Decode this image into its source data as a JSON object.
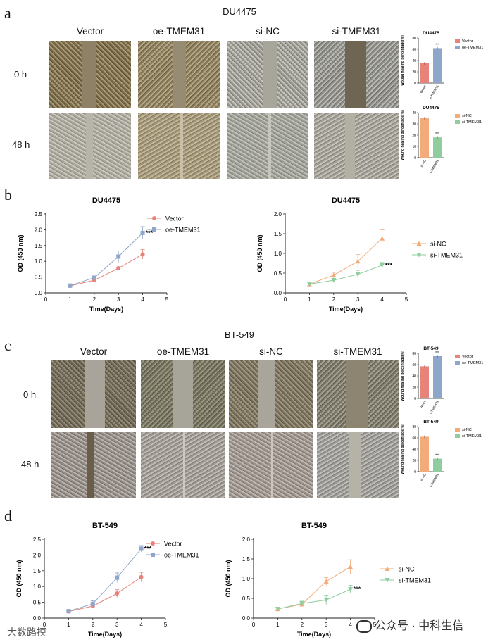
{
  "panels": {
    "a": {
      "letter": "a",
      "title": "DU4475",
      "columns": [
        "Vector",
        "oe-TMEM31",
        "si-NC",
        "si-TMEM31"
      ],
      "rows": [
        "0 h",
        "48 h"
      ]
    },
    "b": {
      "letter": "b"
    },
    "c": {
      "letter": "c",
      "title": "BT-549",
      "columns": [
        "Vector",
        "oe-TMEM31",
        "si-NC",
        "si-TMEM31"
      ],
      "rows": [
        "0 h",
        "48 h"
      ]
    },
    "d": {
      "letter": "d"
    }
  },
  "watermark": {
    "left": "大数路摸",
    "right": "公众号 · 中科生信"
  },
  "colors": {
    "vector": "#e8837a",
    "oe": "#8ea6c9",
    "sinc": "#f3ab7a",
    "sitmem": "#8fcc9e",
    "micro_dark": "#6b5a3a",
    "micro_light": "#b9b6ad"
  },
  "chart_data": [
    {
      "id": "a-bar-oe",
      "type": "bar",
      "title": "DU4475",
      "ylabel": "Wound healing percentage(%)",
      "ylim": [
        0,
        80
      ],
      "yticks": [
        0,
        20,
        40,
        60,
        80
      ],
      "categories": [
        "Vector",
        "oe-TMEM31"
      ],
      "values": [
        35,
        62
      ],
      "legend": [
        "Vector",
        "oe-TMEM31"
      ],
      "annotation": "***"
    },
    {
      "id": "a-bar-si",
      "type": "bar",
      "title": "DU4475",
      "ylabel": "Wound healing percentage(%)",
      "ylim": [
        0,
        40
      ],
      "yticks": [
        0,
        10,
        20,
        30,
        40
      ],
      "categories": [
        "si-NC",
        "si-TMEM31"
      ],
      "values": [
        35,
        18
      ],
      "legend": [
        "si-NC",
        "si-TMEM31"
      ],
      "annotation": "***"
    },
    {
      "id": "b-line-oe",
      "type": "line",
      "title": "DU4475",
      "xlabel": "Time(Days)",
      "ylabel": "OD (450 nm)",
      "xlim": [
        0,
        5
      ],
      "ylim": [
        0,
        2.5
      ],
      "xticks": [
        0,
        1,
        2,
        3,
        4,
        5
      ],
      "yticks": [
        "0.0",
        "0.5",
        "1.0",
        "1.5",
        "2.0",
        "2.5"
      ],
      "x": [
        1,
        2,
        3,
        4
      ],
      "legend_position": "top-right",
      "series": [
        {
          "name": "Vector",
          "values": [
            0.22,
            0.4,
            0.78,
            1.22
          ],
          "err": [
            0.03,
            0.04,
            0.04,
            0.15
          ]
        },
        {
          "name": "oe-TMEM31",
          "values": [
            0.23,
            0.48,
            1.15,
            1.9
          ],
          "err": [
            0.03,
            0.05,
            0.18,
            0.2
          ]
        }
      ],
      "annotation": "***"
    },
    {
      "id": "b-line-si",
      "type": "line",
      "title": "DU4475",
      "xlabel": "Time(Days)",
      "ylabel": "OD (450 nm)",
      "xlim": [
        0,
        5
      ],
      "ylim": [
        0,
        2.0
      ],
      "xticks": [
        0,
        1,
        2,
        3,
        4,
        5
      ],
      "yticks": [
        "0.0",
        "0.5",
        "1.0",
        "1.5",
        "2.0"
      ],
      "x": [
        1,
        2,
        3,
        4
      ],
      "legend_position": "right",
      "series": [
        {
          "name": "si-NC",
          "values": [
            0.22,
            0.45,
            0.8,
            1.38
          ],
          "err": [
            0.04,
            0.07,
            0.17,
            0.22
          ]
        },
        {
          "name": "si-TMEM31",
          "values": [
            0.22,
            0.32,
            0.47,
            0.7
          ],
          "err": [
            0.04,
            0.05,
            0.1,
            0.07
          ]
        }
      ],
      "annotation": "***"
    },
    {
      "id": "c-bar-oe",
      "type": "bar",
      "title": "BT-549",
      "ylabel": "Wound healing percentage(%)",
      "ylim": [
        0,
        80
      ],
      "yticks": [
        0,
        20,
        40,
        60,
        80
      ],
      "categories": [
        "Vector",
        "oe-TMEM31"
      ],
      "values": [
        57,
        75
      ],
      "legend": [
        "Vector",
        "oe-TMEM31"
      ],
      "annotation": "***"
    },
    {
      "id": "c-bar-si",
      "type": "bar",
      "title": "BT-549",
      "ylabel": "Wound healing percentage(%)",
      "ylim": [
        0,
        80
      ],
      "yticks": [
        0,
        20,
        40,
        60,
        80
      ],
      "categories": [
        "si-NC",
        "si-TMEM31"
      ],
      "values": [
        62,
        23
      ],
      "legend": [
        "si-NC",
        "si-TMEM31"
      ],
      "annotation": "***"
    },
    {
      "id": "d-line-oe",
      "type": "line",
      "title": "BT-549",
      "xlabel": "Time(Days)",
      "ylabel": "OD (450 nm)",
      "xlim": [
        0,
        5
      ],
      "ylim": [
        0,
        2.5
      ],
      "xticks": [
        0,
        1,
        2,
        3,
        4,
        5
      ],
      "yticks": [
        "0.0",
        "0.5",
        "1.0",
        "1.5",
        "2.0",
        "2.5"
      ],
      "x": [
        1,
        2,
        3,
        4
      ],
      "legend_position": "top-right",
      "series": [
        {
          "name": "Vector",
          "values": [
            0.21,
            0.38,
            0.78,
            1.3
          ],
          "err": [
            0.03,
            0.05,
            0.12,
            0.15
          ]
        },
        {
          "name": "oe-TMEM31",
          "values": [
            0.22,
            0.45,
            1.28,
            2.2
          ],
          "err": [
            0.03,
            0.1,
            0.15,
            0.1
          ]
        }
      ],
      "annotation": "***"
    },
    {
      "id": "d-line-si",
      "type": "line",
      "title": "BT-549",
      "xlabel": "Time(Days)",
      "ylabel": "OD (450 nm)",
      "xlim": [
        0,
        5
      ],
      "ylim": [
        0,
        2.0
      ],
      "xticks": [
        0,
        1,
        2,
        3,
        4,
        5
      ],
      "yticks": [
        "0.0",
        "0.5",
        "1.0",
        "1.5",
        "2.0"
      ],
      "x": [
        1,
        2,
        3,
        4
      ],
      "legend_position": "right",
      "series": [
        {
          "name": "si-NC",
          "values": [
            0.23,
            0.35,
            0.93,
            1.3
          ],
          "err": [
            0.04,
            0.06,
            0.1,
            0.18
          ]
        },
        {
          "name": "si-TMEM31",
          "values": [
            0.23,
            0.37,
            0.46,
            0.73
          ],
          "err": [
            0.04,
            0.06,
            0.12,
            0.1
          ]
        }
      ],
      "annotation": "***"
    }
  ]
}
